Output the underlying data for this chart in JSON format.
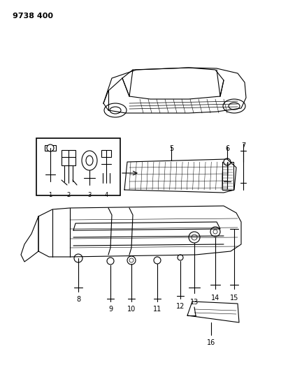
{
  "title": "9738 400",
  "bg": "#ffffff",
  "lc": "#000000",
  "fig_w": 4.12,
  "fig_h": 5.33,
  "dpi": 100
}
